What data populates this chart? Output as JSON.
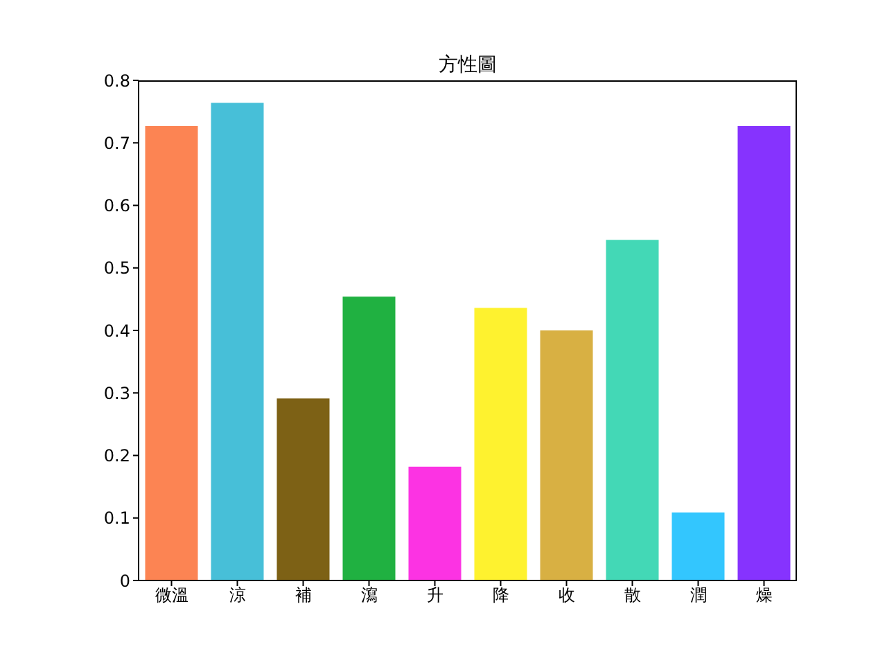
{
  "chart_data": {
    "type": "bar",
    "title": "方性圖",
    "categories": [
      "微溫",
      "涼",
      "補",
      "瀉",
      "升",
      "降",
      "收",
      "散",
      "潤",
      "燥"
    ],
    "values": [
      0.727,
      0.764,
      0.291,
      0.454,
      0.182,
      0.436,
      0.4,
      0.545,
      0.109,
      0.727
    ],
    "colors": [
      "#fc8453",
      "#47bfd8",
      "#7d6115",
      "#20b141",
      "#fc33e3",
      "#fef22f",
      "#d8b043",
      "#43d8b6",
      "#33c6fe",
      "#8633fe"
    ],
    "ylim": [
      0,
      0.8
    ],
    "yticks": [
      0,
      0.1,
      0.2,
      0.3,
      0.4,
      0.5,
      0.6,
      0.7,
      0.8
    ],
    "grid": false
  }
}
